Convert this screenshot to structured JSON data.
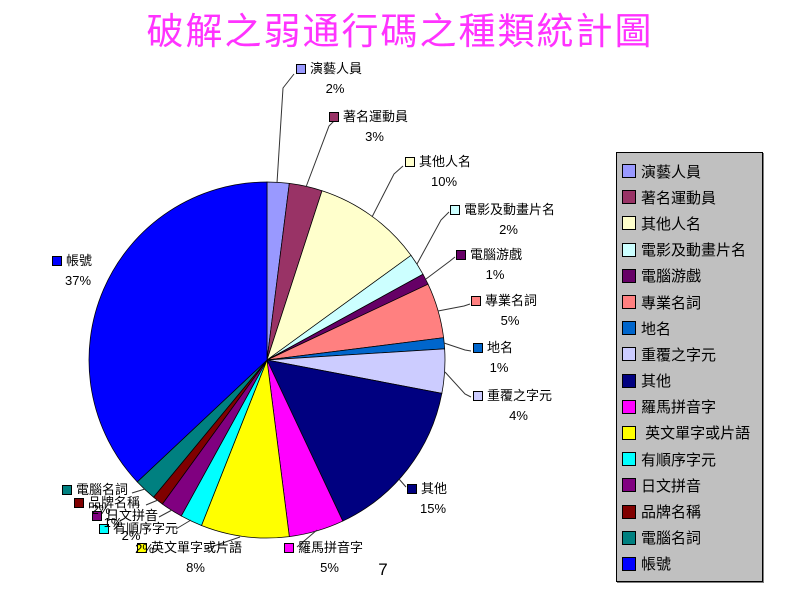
{
  "slide": {
    "title": "破解之弱通行碼之種類統計圖",
    "title_color": "#FF33FF",
    "background": "#FFFFFF",
    "page_number": "7"
  },
  "chart_data": {
    "type": "pie",
    "title": "破解之弱通行碼之種類統計圖",
    "start_angle_deg": 0,
    "direction": "clockwise",
    "data_labels": "category name with percent",
    "legend_position": "right",
    "slices": [
      {
        "label": "演藝人員",
        "value_pct": 2,
        "percent_label": "2%",
        "color": "#9999FF"
      },
      {
        "label": "著名運動員",
        "value_pct": 3,
        "percent_label": "3%",
        "color": "#993366"
      },
      {
        "label": "其他人名",
        "value_pct": 10,
        "percent_label": "10%",
        "color": "#FFFFCC"
      },
      {
        "label": "電影及動畫片名",
        "value_pct": 2,
        "percent_label": "2%",
        "color": "#CCFFFF"
      },
      {
        "label": "電腦游戲",
        "value_pct": 1,
        "percent_label": "1%",
        "color": "#660066"
      },
      {
        "label": "專業名詞",
        "value_pct": 5,
        "percent_label": "5%",
        "color": "#FF8080"
      },
      {
        "label": "地名",
        "value_pct": 1,
        "percent_label": "1%",
        "color": "#0066CC"
      },
      {
        "label": "重覆之字元",
        "value_pct": 4,
        "percent_label": "4%",
        "color": "#CCCCFF"
      },
      {
        "label": "其他",
        "value_pct": 15,
        "percent_label": "15%",
        "color": "#000080"
      },
      {
        "label": "羅馬拼音字",
        "value_pct": 5,
        "percent_label": "5%",
        "color": "#FF00FF"
      },
      {
        "label": "英文單字或片語",
        "value_pct": 8,
        "percent_label": "8%",
        "color": "#FFFF00"
      },
      {
        "label": "有順序字元",
        "value_pct": 2,
        "percent_label": "2%",
        "color": "#00FFFF"
      },
      {
        "label": "日文拼音",
        "value_pct": 2,
        "percent_label": "2%",
        "color": "#800080"
      },
      {
        "label": "品牌名稱",
        "value_pct": 1,
        "percent_label": "1%",
        "color": "#800000"
      },
      {
        "label": "電腦名詞",
        "value_pct": 2,
        "percent_label": "2%",
        "color": "#008080"
      },
      {
        "label": "帳號",
        "value_pct": 37,
        "percent_label": "37%",
        "color": "#0000FF"
      }
    ]
  },
  "legend": {
    "background": "#C0C0C0",
    "border_color": "#000000",
    "items": [
      {
        "label": "演藝人員",
        "color": "#9999FF"
      },
      {
        "label": "著名運動員",
        "color": "#993366"
      },
      {
        "label": "其他人名",
        "color": "#FFFFCC"
      },
      {
        "label": "電影及動畫片名",
        "color": "#CCFFFF"
      },
      {
        "label": "電腦游戲",
        "color": "#660066"
      },
      {
        "label": "專業名詞",
        "color": "#FF8080"
      },
      {
        "label": "地名",
        "color": "#0066CC"
      },
      {
        "label": "重覆之字元",
        "color": "#CCCCFF"
      },
      {
        "label": "其他",
        "color": "#000080"
      },
      {
        "label": "羅馬拼音字",
        "color": "#FF00FF"
      },
      {
        "label": " 英文單字或片語",
        "color": "#FFFF00"
      },
      {
        "label": "有順序字元",
        "color": "#00FFFF"
      },
      {
        "label": "日文拼音",
        "color": "#800080"
      },
      {
        "label": "品牌名稱",
        "color": "#800000"
      },
      {
        "label": "電腦名詞",
        "color": "#008080"
      },
      {
        "label": "帳號",
        "color": "#0000FF"
      }
    ]
  }
}
